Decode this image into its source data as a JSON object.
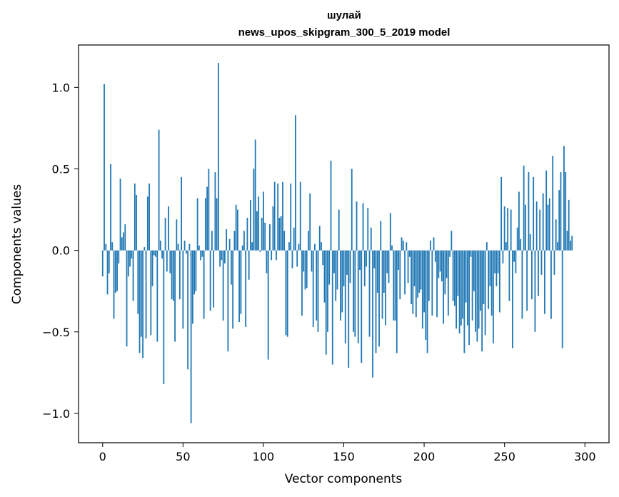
{
  "chart_data": {
    "type": "bar",
    "title": "шулай",
    "subtitle": "news_upos_skipgram_300_5_2019 model",
    "xlabel": "Vector components",
    "ylabel": "Components values",
    "xlim": [
      -15,
      315
    ],
    "ylim": [
      -1.18,
      1.26
    ],
    "xticks": [
      0,
      50,
      100,
      150,
      200,
      250,
      300
    ],
    "yticks": [
      -1.0,
      -0.5,
      0.0,
      0.5,
      1.0
    ],
    "ytick_labels": [
      "−1.0",
      "−0.5",
      "0.0",
      "0.5",
      "1.0"
    ],
    "bar_color": "#1f77b4",
    "grid": false,
    "legend": "none",
    "values": [
      -0.16,
      1.02,
      0.04,
      -0.27,
      -0.14,
      0.53,
      0.05,
      -0.42,
      -0.26,
      -0.25,
      -0.08,
      0.44,
      0.08,
      0.11,
      0.16,
      -0.59,
      -0.16,
      -0.1,
      -0.05,
      -0.31,
      0.41,
      0.34,
      -0.39,
      -0.63,
      -0.53,
      -0.66,
      0.02,
      -0.54,
      0.33,
      0.41,
      -0.52,
      -0.22,
      -0.03,
      -0.04,
      -0.56,
      0.74,
      0.06,
      -0.05,
      -0.82,
      0.2,
      -0.13,
      0.27,
      -0.14,
      -0.3,
      -0.31,
      -0.56,
      0.19,
      0.04,
      -0.3,
      0.45,
      -0.48,
      0.06,
      -0.02,
      -0.73,
      0.04,
      -1.06,
      -0.45,
      -0.27,
      -0.25,
      0.32,
      0.03,
      -0.06,
      -0.04,
      -0.42,
      0.32,
      0.39,
      0.5,
      -0.37,
      0.12,
      -0.35,
      0.48,
      0.32,
      1.15,
      -0.1,
      -0.06,
      -0.43,
      -0.08,
      0.13,
      -0.62,
      0.07,
      -0.21,
      -0.48,
      0.12,
      0.28,
      0.25,
      -0.44,
      -0.39,
      0.03,
      0.12,
      -0.47,
      0.2,
      -0.18,
      0.31,
      0.05,
      0.5,
      0.68,
      0.24,
      0.33,
      -0.01,
      0.2,
      0.36,
      0.17,
      -0.14,
      -0.67,
      0.16,
      -0.06,
      0.27,
      0.42,
      -0.06,
      0.41,
      0.2,
      0.21,
      0.42,
      0.12,
      -0.52,
      -0.53,
      0.05,
      0.41,
      -0.11,
      0.14,
      0.83,
      -0.1,
      0.04,
      0.42,
      -0.4,
      -0.13,
      -0.24,
      -0.23,
      0.12,
      0.35,
      -0.13,
      -0.47,
      0.04,
      -0.43,
      -0.5,
      0.15,
      0.05,
      -0.09,
      -0.32,
      -0.64,
      -0.5,
      -0.21,
      0.55,
      -0.7,
      -0.14,
      -0.31,
      -0.24,
      0.25,
      -0.43,
      -0.38,
      -0.22,
      -0.57,
      -0.15,
      -0.72,
      -0.2,
      0.5,
      -0.5,
      -0.53,
      0.3,
      -0.57,
      -0.12,
      -0.69,
      0.29,
      -0.22,
      -0.1,
      0.26,
      -0.53,
      0.14,
      -0.78,
      -0.11,
      -0.63,
      -0.26,
      -0.59,
      0.18,
      -0.42,
      -0.26,
      -0.46,
      -0.14,
      -0.2,
      0.23,
      0.03,
      -0.43,
      -0.43,
      -0.63,
      -0.12,
      -0.3,
      0.08,
      0.06,
      -0.27,
      0.05,
      -0.2,
      -0.04,
      -0.33,
      -0.39,
      -0.22,
      -0.41,
      -0.29,
      -0.26,
      -0.24,
      -0.48,
      -0.38,
      -0.55,
      -0.63,
      -0.31,
      0.06,
      -0.4,
      0.08,
      -0.07,
      -0.41,
      -0.17,
      -0.13,
      -0.19,
      -0.45,
      -0.27,
      -0.17,
      -0.4,
      -0.04,
      0.12,
      -0.31,
      -0.34,
      -0.48,
      -0.28,
      -0.51,
      -0.46,
      -0.42,
      -0.63,
      -0.32,
      -0.46,
      -0.58,
      -0.04,
      -0.43,
      -0.25,
      -0.5,
      -0.56,
      -0.48,
      -0.37,
      -0.62,
      -0.33,
      -0.52,
      0.05,
      -0.36,
      -0.22,
      -0.4,
      -0.57,
      -0.14,
      -0.22,
      -0.14,
      -0.38,
      0.45,
      -0.08,
      0.27,
      0.05,
      0.26,
      -0.31,
      0.25,
      -0.6,
      -0.07,
      -0.14,
      0.14,
      0.36,
      0.07,
      -0.42,
      0.52,
      0.28,
      -0.37,
      0.48,
      0.1,
      -0.3,
      0.45,
      -0.5,
      0.3,
      -0.28,
      0.25,
      -0.15,
      0.35,
      -0.39,
      0.49,
      0.28,
      0.32,
      -0.42,
      0.58,
      -0.15,
      0.19,
      0.05,
      0.37,
      0.48,
      -0.6,
      0.64,
      0.48,
      0.12,
      0.31,
      0.06,
      0.09
    ]
  }
}
